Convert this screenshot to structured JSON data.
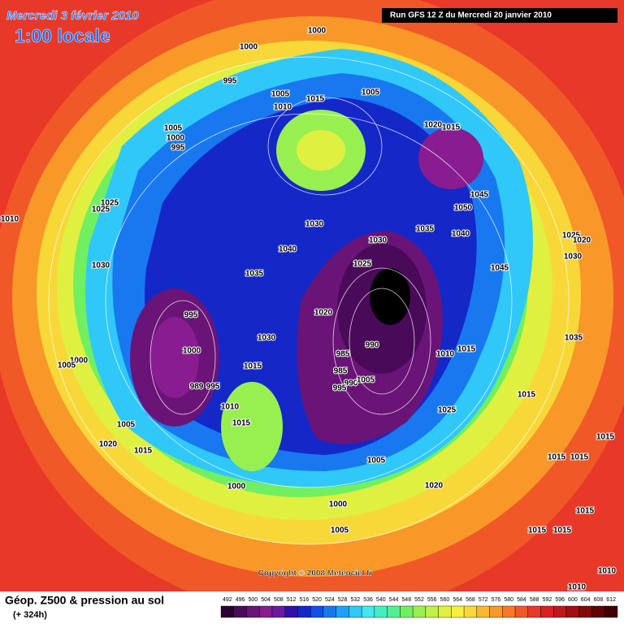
{
  "header": {
    "title": "Mercredi 3 février 2010",
    "time": "1:00 locale",
    "run": "Run GFS 12 Z du Mercredi 20 janvier 2010"
  },
  "map": {
    "isobar_labels": [
      1000,
      1000,
      995,
      1005,
      1015,
      1010,
      1005,
      1005,
      1000,
      995,
      1020,
      1015,
      1025,
      1025,
      1010,
      1045,
      1050,
      1030,
      1035,
      1040,
      1030,
      1040,
      1025,
      1020,
      1030,
      1030,
      1025,
      1035,
      1045,
      995,
      1020,
      1030,
      1035,
      1000,
      985,
      990,
      1010,
      1015,
      1000,
      1005,
      1015,
      985,
      990,
      1005,
      995,
      989,
      995,
      1010,
      1015,
      1025,
      1005,
      1015,
      1020,
      1015,
      1005,
      1015,
      1015,
      1015,
      1020,
      1000,
      1000,
      1015,
      1005,
      1015,
      1015,
      1010,
      1010
    ]
  },
  "footer": {
    "copyright": "Copyright © 2008 Meteociel.fr",
    "field": "Géop. Z500 & pression au sol",
    "lead": "(+ 324h)"
  },
  "legend": {
    "labels": [
      492,
      496,
      500,
      504,
      508,
      512,
      516,
      520,
      524,
      528,
      532,
      536,
      540,
      544,
      548,
      552,
      556,
      560,
      564,
      568,
      572,
      576,
      580,
      584,
      588,
      592,
      596,
      600,
      604,
      608,
      612
    ],
    "colors": [
      "#2a0030",
      "#4a0a5a",
      "#6a1478",
      "#881c90",
      "#6a1aa0",
      "#3010a8",
      "#1428c8",
      "#1050e8",
      "#1878f0",
      "#20a0f8",
      "#30c8f8",
      "#40e8f0",
      "#40f0c0",
      "#50f090",
      "#70f060",
      "#98f050",
      "#c0f048",
      "#e0f040",
      "#f8f040",
      "#f8d838",
      "#f8b830",
      "#f89828",
      "#f87828",
      "#f05828",
      "#e83828",
      "#d82020",
      "#c01818",
      "#a01010",
      "#800808",
      "#600404",
      "#400000"
    ]
  }
}
